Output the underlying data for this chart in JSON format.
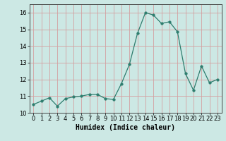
{
  "x": [
    0,
    1,
    2,
    3,
    4,
    5,
    6,
    7,
    8,
    9,
    10,
    11,
    12,
    13,
    14,
    15,
    16,
    17,
    18,
    19,
    20,
    21,
    22,
    23
  ],
  "y": [
    10.5,
    10.7,
    10.9,
    10.4,
    10.85,
    10.95,
    11.0,
    11.1,
    11.1,
    10.85,
    10.8,
    11.75,
    12.9,
    14.75,
    16.0,
    15.85,
    15.35,
    15.45,
    14.85,
    12.35,
    11.35,
    12.8,
    11.8,
    12.0
  ],
  "line_color": "#2e7d6e",
  "marker_color": "#2e7d6e",
  "bg_color": "#cce8e4",
  "grid_color": "#d4a0a0",
  "xlabel": "Humidex (Indice chaleur)",
  "ylim": [
    10.0,
    16.5
  ],
  "xlim": [
    -0.5,
    23.5
  ],
  "yticks": [
    10,
    11,
    12,
    13,
    14,
    15,
    16
  ],
  "xticks": [
    0,
    1,
    2,
    3,
    4,
    5,
    6,
    7,
    8,
    9,
    10,
    11,
    12,
    13,
    14,
    15,
    16,
    17,
    18,
    19,
    20,
    21,
    22,
    23
  ],
  "tick_fontsize": 6,
  "xlabel_fontsize": 7,
  "marker_size": 2.5,
  "linewidth": 0.9
}
